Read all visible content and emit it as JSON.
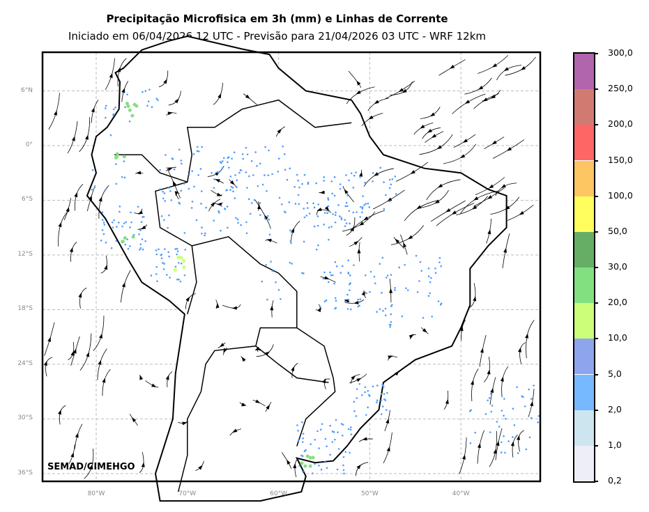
{
  "title": "Precipitação Microfisica em 3h (mm) e Linhas de Corrente",
  "subtitle": "Iniciado em 06/04/2026 12 UTC - Previsão para 21/04/2026 03 UTC - WRF 12km",
  "credit": "SEMAD/CIMEHGO",
  "lat_labels": [
    "6°N",
    "0°",
    "6°S",
    "12°S",
    "18°S",
    "24°S",
    "30°S",
    "36°S"
  ],
  "lon_labels": [
    "80°W",
    "70°W",
    "60°W",
    "50°W",
    "40°W"
  ],
  "colorbar": {
    "levels": [
      "0,2",
      "1,0",
      "2,0",
      "5,0",
      "10,0",
      "20,0",
      "30,0",
      "50,0",
      "100,0",
      "150,0",
      "200,0",
      "250,0",
      "300,0"
    ],
    "colors": [
      "#eeeef9",
      "#cde5ef",
      "#77b9ff",
      "#8ea5ee",
      "#cdfe7a",
      "#83e080",
      "#66ae65",
      "#fffe5e",
      "#fec563",
      "#fe6565",
      "#d17a72",
      "#b165ad"
    ]
  }
}
